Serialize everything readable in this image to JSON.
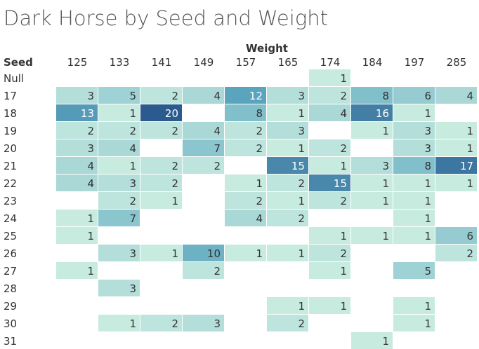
{
  "chart_data": {
    "type": "heatmap",
    "title": "Dark Horse by Seed and Weight",
    "column_header": "Weight",
    "row_header": "Seed",
    "columns": [
      "125",
      "133",
      "141",
      "149",
      "157",
      "165",
      "174",
      "184",
      "197",
      "285"
    ],
    "rows": [
      "Null",
      "17",
      "18",
      "19",
      "20",
      "21",
      "22",
      "23",
      "24",
      "25",
      "26",
      "27",
      "28",
      "29",
      "30",
      "31"
    ],
    "values": [
      [
        null,
        null,
        null,
        null,
        null,
        null,
        1,
        null,
        null,
        null
      ],
      [
        3,
        5,
        2,
        4,
        12,
        3,
        2,
        8,
        6,
        4
      ],
      [
        13,
        1,
        20,
        null,
        8,
        1,
        4,
        16,
        1,
        null
      ],
      [
        2,
        2,
        2,
        4,
        2,
        3,
        null,
        1,
        3,
        1
      ],
      [
        3,
        4,
        null,
        7,
        2,
        1,
        2,
        null,
        3,
        1
      ],
      [
        4,
        1,
        2,
        2,
        null,
        15,
        1,
        3,
        8,
        17
      ],
      [
        4,
        3,
        2,
        null,
        1,
        2,
        15,
        1,
        1,
        1
      ],
      [
        null,
        2,
        1,
        null,
        2,
        1,
        2,
        1,
        1,
        null
      ],
      [
        1,
        7,
        null,
        null,
        4,
        2,
        null,
        null,
        1,
        null
      ],
      [
        1,
        null,
        null,
        null,
        null,
        null,
        1,
        1,
        1,
        6
      ],
      [
        null,
        3,
        1,
        10,
        1,
        1,
        2,
        null,
        null,
        2
      ],
      [
        1,
        null,
        null,
        2,
        null,
        null,
        1,
        null,
        5,
        null
      ],
      [
        null,
        3,
        null,
        null,
        null,
        null,
        null,
        null,
        null,
        null
      ],
      [
        null,
        null,
        null,
        null,
        null,
        1,
        1,
        null,
        1,
        null
      ],
      [
        null,
        1,
        2,
        3,
        null,
        2,
        null,
        null,
        1,
        null
      ],
      [
        null,
        null,
        null,
        null,
        null,
        null,
        null,
        1,
        null,
        null
      ]
    ],
    "color_scale": {
      "low": "#c8ebe0",
      "mid": "#5ea9c0",
      "high": "#2b5a8e",
      "max": 20
    }
  }
}
